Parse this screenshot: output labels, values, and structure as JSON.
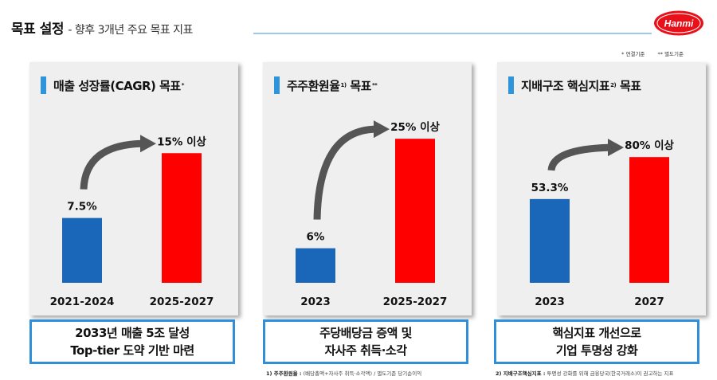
{
  "header": {
    "title_main": "목표 설정",
    "title_sub": "- 향후 3개년 주요 목표 지표",
    "logo_text": "Hanmi"
  },
  "notes_top": [
    "* 연결기준",
    "** 별도기준"
  ],
  "colors": {
    "blue": "#1a66b8",
    "red": "#ff0000",
    "accent": "#2e95dc",
    "arrow": "#555555"
  },
  "chart_data": [
    {
      "type": "bar",
      "title": "매출 성장률(CAGR) 목표",
      "title_sup": "*",
      "categories": [
        "2021-2024",
        "2025-2027"
      ],
      "values": [
        7.5,
        15
      ],
      "data_labels": [
        "7.5%",
        "15% 이상"
      ],
      "colors": [
        "#1a66b8",
        "#ff0000"
      ],
      "ylim": [
        0,
        20
      ]
    },
    {
      "type": "bar",
      "title": "주주환원율",
      "title_sup": "1)",
      "title_after": "목표",
      "title_sup2": "**",
      "categories": [
        "2023",
        "2025-2027"
      ],
      "values": [
        6,
        25
      ],
      "data_labels": [
        "6%",
        "25% 이상"
      ],
      "colors": [
        "#1a66b8",
        "#ff0000"
      ],
      "ylim": [
        0,
        30
      ]
    },
    {
      "type": "bar",
      "title": "지배구조 핵심지표",
      "title_sup": "2)",
      "title_after": "목표",
      "categories": [
        "2023",
        "2027"
      ],
      "values": [
        53.3,
        80
      ],
      "data_labels": [
        "53.3%",
        "80% 이상"
      ],
      "colors": [
        "#1a66b8",
        "#ff0000"
      ],
      "ylim": [
        0,
        110
      ]
    }
  ],
  "boxes": [
    {
      "line1": "2033년 매출 5조 달성",
      "line2": "Top-tier 도약 기반 마련"
    },
    {
      "line1": "주당배당금 증액 및",
      "line2": "자사주 취득·소각"
    },
    {
      "line1": "핵심지표 개선으로",
      "line2": "기업 투명성 강화"
    }
  ],
  "footnotes": [
    {
      "label": "1) 주주환원율 :",
      "text": "(배당총액+자사주 취득·소각액) / 별도기준 당기순이익"
    },
    {
      "label": "2) 지배구조핵심지표 :",
      "text": "투명성 강화를 위해 금융당국(한국거래소)이 권고하는 지표"
    }
  ]
}
